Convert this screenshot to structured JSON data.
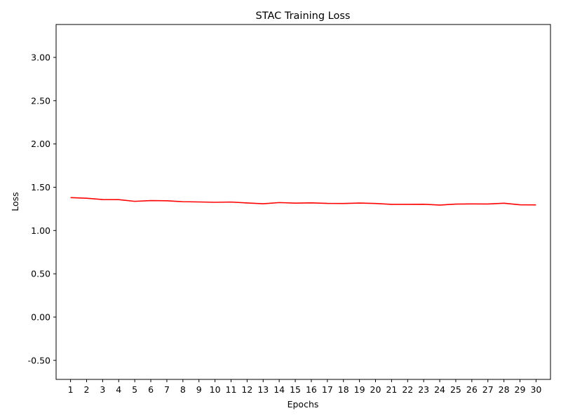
{
  "chart_data": {
    "type": "line",
    "title": "STAC Training Loss",
    "xlabel": "Epochs",
    "ylabel": "Loss",
    "x": [
      1,
      2,
      3,
      4,
      5,
      6,
      7,
      8,
      9,
      10,
      11,
      12,
      13,
      14,
      15,
      16,
      17,
      18,
      19,
      20,
      21,
      22,
      23,
      24,
      25,
      26,
      27,
      28,
      29,
      30
    ],
    "series": [
      {
        "values": [
          1.38,
          1.373,
          1.358,
          1.357,
          1.337,
          1.346,
          1.344,
          1.333,
          1.33,
          1.326,
          1.329,
          1.318,
          1.309,
          1.323,
          1.316,
          1.319,
          1.313,
          1.312,
          1.317,
          1.312,
          1.302,
          1.302,
          1.303,
          1.294,
          1.305,
          1.307,
          1.306,
          1.315,
          1.297,
          1.296
        ],
        "color": "#ff0000"
      }
    ],
    "ylim": [
      -0.72,
      3.38
    ],
    "xlim": [
      0.1,
      30.9
    ],
    "yticks": [
      -0.5,
      0.0,
      0.5,
      1.0,
      1.5,
      2.0,
      2.5,
      3.0
    ],
    "ytick_labels": [
      "-0.50",
      "0.00",
      "0.50",
      "1.00",
      "1.50",
      "2.00",
      "2.50",
      "3.00"
    ],
    "xtick_labels": [
      "1",
      "2",
      "3",
      "4",
      "5",
      "6",
      "7",
      "8",
      "9",
      "10",
      "11",
      "12",
      "13",
      "14",
      "15",
      "16",
      "17",
      "18",
      "19",
      "20",
      "21",
      "22",
      "23",
      "24",
      "25",
      "26",
      "27",
      "28",
      "29",
      "30"
    ],
    "grid": false,
    "legend": "none"
  }
}
